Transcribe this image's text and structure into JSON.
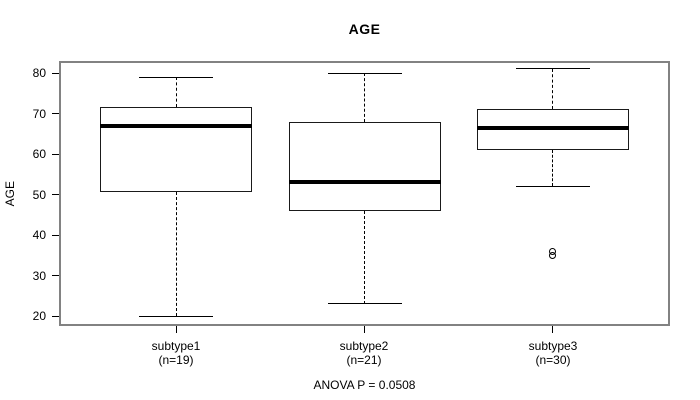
{
  "chart_data": {
    "type": "boxplot",
    "title": "AGE",
    "ylabel": "AGE",
    "footnote": "ANOVA P = 0.0508",
    "ylim": [
      20,
      80
    ],
    "yticks": [
      20,
      30,
      40,
      50,
      60,
      70,
      80
    ],
    "grid": false,
    "groups": [
      {
        "label": "subtype1",
        "sublabel": "(n=19)",
        "whisker_low": 20,
        "q1": 50.5,
        "median": 67,
        "q3": 71.5,
        "whisker_high": 79,
        "outliers": []
      },
      {
        "label": "subtype2",
        "sublabel": "(n=21)",
        "whisker_low": 23,
        "q1": 46,
        "median": 53,
        "q3": 68,
        "whisker_high": 80,
        "outliers": []
      },
      {
        "label": "subtype3",
        "sublabel": "(n=30)",
        "whisker_low": 52,
        "q1": 61,
        "median": 66.5,
        "q3": 71,
        "whisker_high": 81,
        "outliers": [
          36,
          35
        ]
      }
    ],
    "colors": {
      "frame": "#828282",
      "box_border": "#1a1a1a",
      "median": "#000000",
      "whisker": "#000000",
      "text": "#000000",
      "background": "#ffffff"
    }
  }
}
